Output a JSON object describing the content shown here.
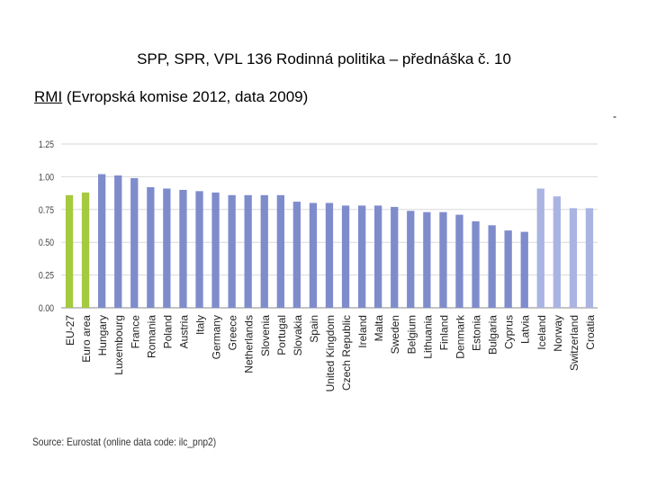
{
  "header": {
    "title": "SPP, SPR, VPL 136 Rodinná politika – přednáška č. 10"
  },
  "subtitle": {
    "abbr": "RMI",
    "rest": " (Evropská komise 2012, data 2009)"
  },
  "footnote_mark": "-",
  "source": {
    "text": "Source: Eurostat (online data code: ilc_pnp2)"
  },
  "colors": {
    "aggregate": "#a6c940",
    "eu_member": "#7f8ccc",
    "non_eu": "#aab4e2",
    "grid": "#d9d9d9"
  },
  "chart_data": {
    "type": "bar",
    "title": "",
    "xlabel": "",
    "ylabel": "",
    "ylim": [
      0,
      1.25
    ],
    "yticks": [
      "0.00",
      "0.25",
      "0.50",
      "0.75",
      "1.00",
      "1.25"
    ],
    "grid": true,
    "categories": [
      "EU-27",
      "Euro area",
      "Hungary",
      "Luxembourg",
      "France",
      "Romania",
      "Poland",
      "Austria",
      "Italy",
      "Germany",
      "Greece",
      "Netherlands",
      "Slovenia",
      "Portugal",
      "Slovakia",
      "Spain",
      "United Kingdom",
      "Czech Republic",
      "Ireland",
      "Malta",
      "Sweden",
      "Belgium",
      "Lithuania",
      "Finland",
      "Denmark",
      "Estonia",
      "Bulgaria",
      "Cyprus",
      "Latvia",
      "Iceland",
      "Norway",
      "Switzerland",
      "Croatia"
    ],
    "values": [
      0.86,
      0.88,
      1.02,
      1.01,
      0.99,
      0.92,
      0.91,
      0.9,
      0.89,
      0.88,
      0.86,
      0.86,
      0.86,
      0.86,
      0.81,
      0.8,
      0.8,
      0.78,
      0.78,
      0.78,
      0.77,
      0.74,
      0.73,
      0.73,
      0.71,
      0.66,
      0.63,
      0.59,
      0.58,
      0.91,
      0.85,
      0.76,
      0.76
    ],
    "groups": [
      "aggregate",
      "aggregate",
      "eu_member",
      "eu_member",
      "eu_member",
      "eu_member",
      "eu_member",
      "eu_member",
      "eu_member",
      "eu_member",
      "eu_member",
      "eu_member",
      "eu_member",
      "eu_member",
      "eu_member",
      "eu_member",
      "eu_member",
      "eu_member",
      "eu_member",
      "eu_member",
      "eu_member",
      "eu_member",
      "eu_member",
      "eu_member",
      "eu_member",
      "eu_member",
      "eu_member",
      "eu_member",
      "eu_member",
      "non_eu",
      "non_eu",
      "non_eu",
      "non_eu"
    ]
  }
}
